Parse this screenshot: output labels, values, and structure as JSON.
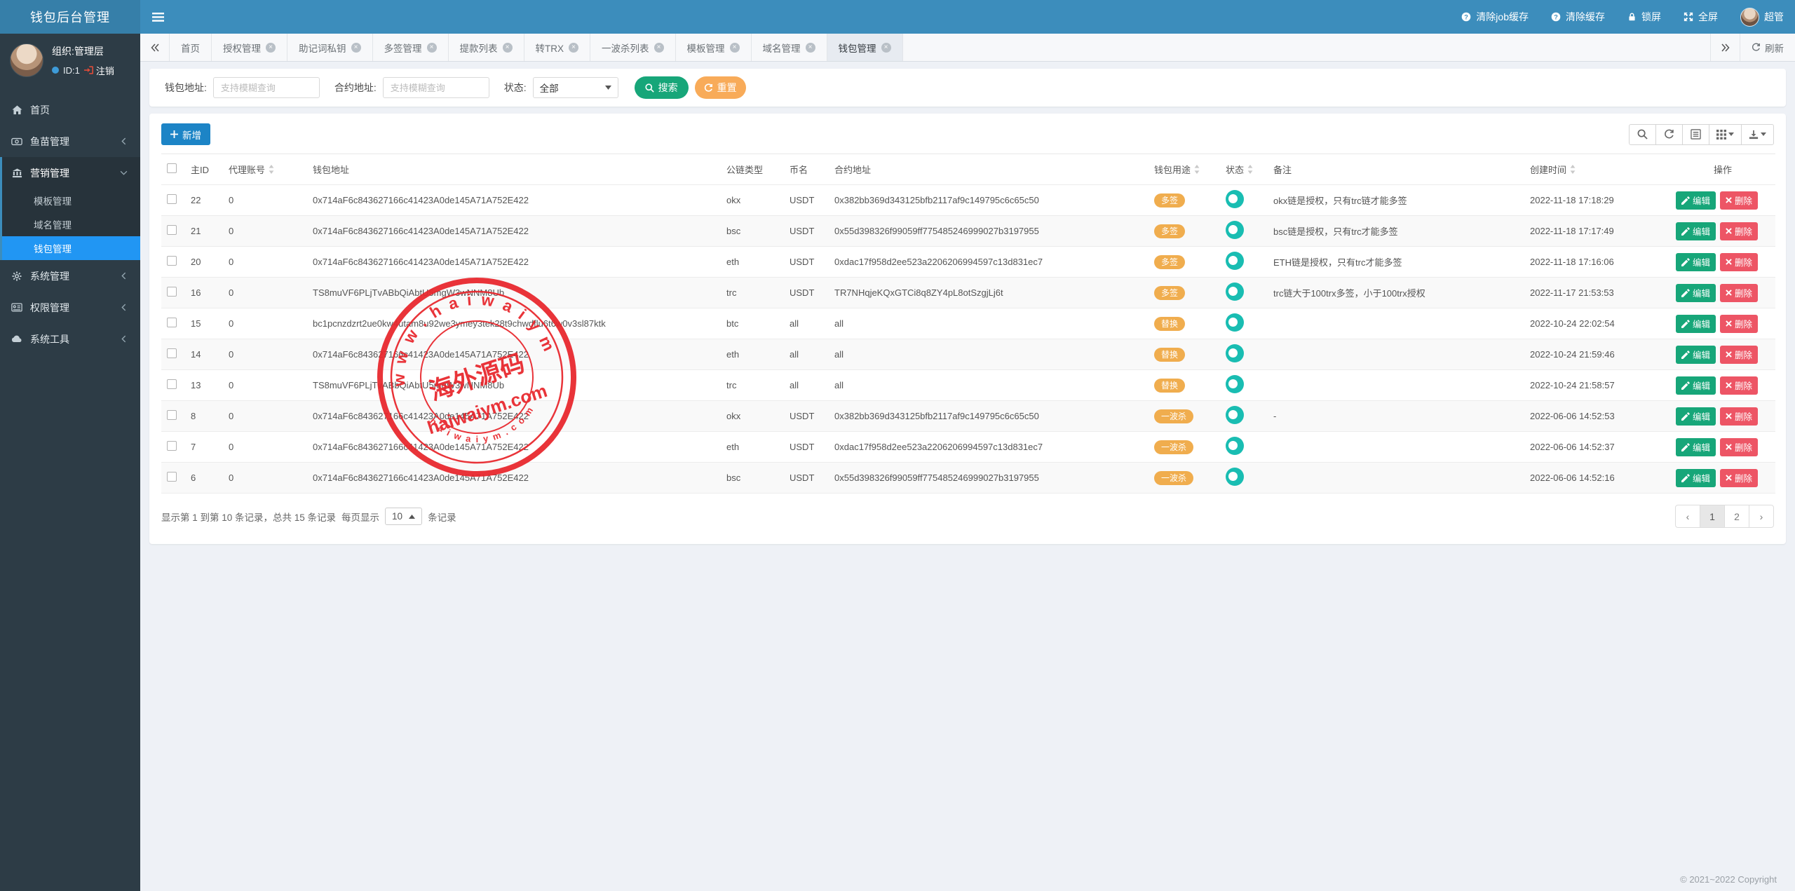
{
  "app": {
    "brand": "钱包后台管理",
    "copyright": "© 2021~2022 Copyright"
  },
  "topbar": {
    "items": [
      {
        "icon": "question-circle",
        "label": "清除job缓存"
      },
      {
        "icon": "question-circle",
        "label": "清除缓存"
      },
      {
        "icon": "lock",
        "label": "锁屏"
      },
      {
        "icon": "expand",
        "label": "全屏"
      },
      {
        "icon": "avatar",
        "label": "超管"
      }
    ]
  },
  "sidebar": {
    "user": {
      "org": "组织:管理层",
      "id_label": "ID:1",
      "logout_label": "注销"
    },
    "menu": [
      {
        "label": "首页",
        "icon": "home",
        "type": "item"
      },
      {
        "label": "鱼苗管理",
        "icon": "eye",
        "type": "group",
        "state": "collapsed"
      },
      {
        "label": "营销管理",
        "icon": "bank",
        "type": "group",
        "state": "expanded",
        "children": [
          {
            "label": "模板管理",
            "active": false
          },
          {
            "label": "域名管理",
            "active": false
          },
          {
            "label": "钱包管理",
            "active": true
          }
        ]
      },
      {
        "label": "系统管理",
        "icon": "gear",
        "type": "group",
        "state": "collapsed"
      },
      {
        "label": "权限管理",
        "icon": "id-card",
        "type": "group",
        "state": "collapsed"
      },
      {
        "label": "系统工具",
        "icon": "cloud",
        "type": "group",
        "state": "collapsed"
      }
    ]
  },
  "tabs": {
    "items": [
      {
        "label": "首页",
        "closable": false,
        "active": false
      },
      {
        "label": "授权管理",
        "closable": true,
        "active": false
      },
      {
        "label": "助记词私钥",
        "closable": true,
        "active": false
      },
      {
        "label": "多签管理",
        "closable": true,
        "active": false
      },
      {
        "label": "提款列表",
        "closable": true,
        "active": false
      },
      {
        "label": "转TRX",
        "closable": true,
        "active": false
      },
      {
        "label": "一波杀列表",
        "closable": true,
        "active": false
      },
      {
        "label": "模板管理",
        "closable": true,
        "active": false
      },
      {
        "label": "域名管理",
        "closable": true,
        "active": false
      },
      {
        "label": "钱包管理",
        "closable": true,
        "active": true
      }
    ],
    "refresh_label": "刷新"
  },
  "filters": {
    "wallet_label": "钱包地址:",
    "wallet_placeholder": "支持模糊查询",
    "contract_label": "合约地址:",
    "contract_placeholder": "支持模糊查询",
    "status_label": "状态:",
    "status_value": "全部",
    "search_label": "搜索",
    "reset_label": "重置"
  },
  "toolbar": {
    "add_label": "新增"
  },
  "table": {
    "columns": [
      {
        "key": "id",
        "label": "主ID",
        "sortable": false
      },
      {
        "key": "agent",
        "label": "代理账号",
        "sortable": true
      },
      {
        "key": "wallet",
        "label": "钱包地址",
        "sortable": false
      },
      {
        "key": "chain",
        "label": "公链类型",
        "sortable": false
      },
      {
        "key": "coin",
        "label": "币名",
        "sortable": false
      },
      {
        "key": "contract",
        "label": "合约地址",
        "sortable": false
      },
      {
        "key": "usage",
        "label": "钱包用途",
        "sortable": true
      },
      {
        "key": "status",
        "label": "状态",
        "sortable": true
      },
      {
        "key": "remark",
        "label": "备注",
        "sortable": false
      },
      {
        "key": "created",
        "label": "创建时间",
        "sortable": true
      },
      {
        "key": "actions",
        "label": "操作",
        "sortable": false
      }
    ],
    "action_edit": "编辑",
    "action_delete": "删除",
    "rows": [
      {
        "id": "22",
        "agent": "0",
        "wallet": "0x714aF6c843627166c41423A0de145A71A752E422",
        "chain": "okx",
        "coin": "USDT",
        "contract": "0x382bb369d343125bfb2117af9c149795c6c65c50",
        "usage": "多签",
        "status": "on",
        "remark": "okx链是授权，只有trc链才能多签",
        "created": "2022-11-18 17:18:29"
      },
      {
        "id": "21",
        "agent": "0",
        "wallet": "0x714aF6c843627166c41423A0de145A71A752E422",
        "chain": "bsc",
        "coin": "USDT",
        "contract": "0x55d398326f99059ff775485246999027b3197955",
        "usage": "多签",
        "status": "on",
        "remark": "bsc链是授权，只有trc才能多签",
        "created": "2022-11-18 17:17:49"
      },
      {
        "id": "20",
        "agent": "0",
        "wallet": "0x714aF6c843627166c41423A0de145A71A752E422",
        "chain": "eth",
        "coin": "USDT",
        "contract": "0xdac17f958d2ee523a2206206994597c13d831ec7",
        "usage": "多签",
        "status": "on",
        "remark": "ETH链是授权，只有trc才能多签",
        "created": "2022-11-18 17:16:06"
      },
      {
        "id": "16",
        "agent": "0",
        "wallet": "TS8muVF6PLjTvABbQiAbtU5mgW3wNNM8Ub",
        "chain": "trc",
        "coin": "USDT",
        "contract": "TR7NHqjeKQxGTCi8q8ZY4pL8otSzgjLj6t",
        "usage": "多签",
        "status": "on",
        "remark": "trc链大于100trx多签，小于100trx授权",
        "created": "2022-11-17 21:53:53"
      },
      {
        "id": "15",
        "agent": "0",
        "wallet": "bc1pcnzdzrt2ue0kw4utam8u92we3ymey3tek28t9chwdflu6t6w0v3sl87ktk",
        "chain": "btc",
        "coin": "all",
        "contract": "all",
        "usage": "替换",
        "status": "on",
        "remark": "",
        "created": "2022-10-24 22:02:54"
      },
      {
        "id": "14",
        "agent": "0",
        "wallet": "0x714aF6c843627166c41423A0de145A71A752E422",
        "chain": "eth",
        "coin": "all",
        "contract": "all",
        "usage": "替换",
        "status": "on",
        "remark": "",
        "created": "2022-10-24 21:59:46"
      },
      {
        "id": "13",
        "agent": "0",
        "wallet": "TS8muVF6PLjTvABbQiAbtU5mgW3wNNM8Ub",
        "chain": "trc",
        "coin": "all",
        "contract": "all",
        "usage": "替换",
        "status": "on",
        "remark": "",
        "created": "2022-10-24 21:58:57"
      },
      {
        "id": "8",
        "agent": "0",
        "wallet": "0x714aF6c843627166c41423A0de145A71A752E422",
        "chain": "okx",
        "coin": "USDT",
        "contract": "0x382bb369d343125bfb2117af9c149795c6c65c50",
        "usage": "一波杀",
        "status": "on",
        "remark": "-",
        "created": "2022-06-06 14:52:53"
      },
      {
        "id": "7",
        "agent": "0",
        "wallet": "0x714aF6c843627166c41423A0de145A71A752E422",
        "chain": "eth",
        "coin": "USDT",
        "contract": "0xdac17f958d2ee523a2206206994597c13d831ec7",
        "usage": "一波杀",
        "status": "on",
        "remark": "",
        "created": "2022-06-06 14:52:37"
      },
      {
        "id": "6",
        "agent": "0",
        "wallet": "0x714aF6c843627166c41423A0de145A71A752E422",
        "chain": "bsc",
        "coin": "USDT",
        "contract": "0x55d398326f99059ff775485246999027b3197955",
        "usage": "一波杀",
        "status": "on",
        "remark": "",
        "created": "2022-06-06 14:52:16"
      }
    ]
  },
  "pagination": {
    "summary": "显示第 1 到第 10 条记录，总共 15 条记录",
    "per_page_prefix": "每页显示",
    "per_page_value": "10",
    "per_page_suffix": "条记录",
    "pages": [
      "1",
      "2"
    ],
    "active_page": "1"
  },
  "watermark": {
    "arc_text": "w w w . h a i w a i y m . c o m",
    "center_text": "海外源码",
    "sub_text": "haiwaiym.com",
    "bottom_arc_text": "h a i w a i y m . c o m",
    "color": "#e8252b"
  },
  "colors": {
    "topbar": "#3c8dbc",
    "brand": "#367fa9",
    "sidebar": "#2d3c46",
    "active_menu": "#2196f3",
    "green": "#17a679",
    "orange": "#f8ab59",
    "blue": "#1c84c6",
    "badge": "#f0ad4e",
    "toggle": "#19bdb2",
    "red": "#ed5565"
  }
}
